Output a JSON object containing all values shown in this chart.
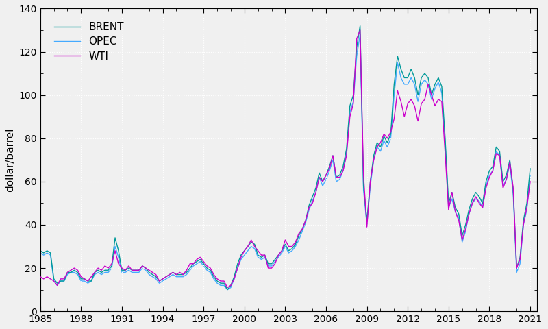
{
  "title": "",
  "ylabel": "dollar/barrel",
  "xlabel": "",
  "xlim": [
    1985.0,
    2021.5
  ],
  "ylim": [
    0,
    140
  ],
  "yticks": [
    0,
    20,
    40,
    60,
    80,
    100,
    120,
    140
  ],
  "xticks": [
    1985,
    1988,
    1991,
    1994,
    1997,
    2000,
    2003,
    2006,
    2009,
    2012,
    2015,
    2018,
    2021
  ],
  "colors": {
    "WTI": "#cc00cc",
    "BRENT": "#009999",
    "OPEC": "#44aaff"
  },
  "background_color": "#f0f0f0",
  "grid_color": "#ffffff",
  "linewidth": 1.0,
  "wti_years": [
    1985,
    1985.25,
    1985.5,
    1985.75,
    1986,
    1986.25,
    1986.5,
    1986.75,
    1987,
    1987.25,
    1987.5,
    1987.75,
    1988,
    1988.25,
    1988.5,
    1988.75,
    1989,
    1989.25,
    1989.5,
    1989.75,
    1990,
    1990.25,
    1990.5,
    1990.75,
    1991,
    1991.25,
    1991.5,
    1991.75,
    1992,
    1992.25,
    1992.5,
    1992.75,
    1993,
    1993.25,
    1993.5,
    1993.75,
    1994,
    1994.25,
    1994.5,
    1994.75,
    1995,
    1995.25,
    1995.5,
    1995.75,
    1996,
    1996.25,
    1996.5,
    1996.75,
    1997,
    1997.25,
    1997.5,
    1997.75,
    1998,
    1998.25,
    1998.5,
    1998.75,
    1999,
    1999.25,
    1999.5,
    1999.75,
    2000,
    2000.25,
    2000.5,
    2000.75,
    2001,
    2001.25,
    2001.5,
    2001.75,
    2002,
    2002.25,
    2002.5,
    2002.75,
    2003,
    2003.25,
    2003.5,
    2003.75,
    2004,
    2004.25,
    2004.5,
    2004.75,
    2005,
    2005.25,
    2005.5,
    2005.75,
    2006,
    2006.25,
    2006.5,
    2006.75,
    2007,
    2007.25,
    2007.5,
    2007.75,
    2008,
    2008.25,
    2008.5,
    2008.75,
    2009,
    2009.25,
    2009.5,
    2009.75,
    2010,
    2010.25,
    2010.5,
    2010.75,
    2011,
    2011.25,
    2011.5,
    2011.75,
    2012,
    2012.25,
    2012.5,
    2012.75,
    2013,
    2013.25,
    2013.5,
    2013.75,
    2014,
    2014.25,
    2014.5,
    2014.75,
    2015,
    2015.25,
    2015.5,
    2015.75,
    2016,
    2016.25,
    2016.5,
    2016.75,
    2017,
    2017.25,
    2017.5,
    2017.75,
    2018,
    2018.25,
    2018.5,
    2018.75,
    2019,
    2019.25,
    2019.5,
    2019.75,
    2020,
    2020.25,
    2020.5,
    2020.75,
    2021
  ],
  "wti": [
    16,
    15,
    16,
    15,
    14,
    12,
    15,
    15,
    18,
    19,
    20,
    19,
    16,
    15,
    14,
    16,
    18,
    20,
    19,
    21,
    20,
    22,
    28,
    22,
    20,
    19,
    21,
    19,
    19,
    19,
    21,
    20,
    19,
    18,
    17,
    14,
    15,
    16,
    17,
    18,
    17,
    18,
    17,
    19,
    22,
    22,
    24,
    25,
    23,
    21,
    20,
    17,
    15,
    14,
    14,
    11,
    12,
    15,
    20,
    25,
    28,
    30,
    33,
    30,
    28,
    26,
    26,
    20,
    20,
    22,
    26,
    28,
    33,
    30,
    30,
    32,
    36,
    38,
    42,
    48,
    50,
    55,
    62,
    60,
    63,
    66,
    72,
    62,
    62,
    65,
    72,
    90,
    96,
    126,
    130,
    63,
    39,
    60,
    70,
    76,
    78,
    82,
    80,
    83,
    89,
    102,
    97,
    90,
    96,
    98,
    95,
    88,
    96,
    98,
    105,
    100,
    95,
    98,
    97,
    73,
    47,
    55,
    46,
    42,
    33,
    38,
    45,
    50,
    53,
    50,
    48,
    57,
    62,
    65,
    73,
    72,
    57,
    61,
    69,
    57,
    20,
    24,
    40,
    48,
    60
  ],
  "brent": [
    28,
    27,
    28,
    27,
    15,
    13,
    14,
    14,
    18,
    18,
    19,
    18,
    15,
    15,
    14,
    14,
    18,
    19,
    18,
    19,
    19,
    21,
    34,
    28,
    19,
    19,
    20,
    19,
    19,
    19,
    21,
    20,
    18,
    17,
    16,
    14,
    15,
    16,
    17,
    18,
    17,
    17,
    17,
    18,
    20,
    22,
    23,
    24,
    22,
    20,
    19,
    16,
    14,
    13,
    13,
    10,
    12,
    16,
    22,
    26,
    28,
    30,
    32,
    31,
    26,
    25,
    26,
    22,
    22,
    24,
    26,
    28,
    31,
    28,
    29,
    31,
    35,
    38,
    42,
    49,
    53,
    57,
    64,
    60,
    63,
    67,
    72,
    62,
    63,
    67,
    75,
    95,
    100,
    122,
    132,
    58,
    42,
    60,
    72,
    78,
    76,
    81,
    78,
    82,
    105,
    118,
    112,
    108,
    108,
    112,
    108,
    100,
    108,
    110,
    108,
    100,
    105,
    108,
    104,
    80,
    50,
    55,
    48,
    45,
    35,
    40,
    47,
    52,
    55,
    53,
    50,
    60,
    65,
    67,
    76,
    74,
    60,
    63,
    70,
    56,
    20,
    25,
    42,
    50,
    66
  ],
  "opec": [
    27,
    26,
    27,
    26,
    14,
    12,
    14,
    14,
    17,
    18,
    18,
    17,
    14,
    14,
    13,
    14,
    17,
    18,
    17,
    18,
    18,
    20,
    30,
    25,
    18,
    18,
    19,
    18,
    18,
    18,
    20,
    19,
    17,
    16,
    15,
    13,
    14,
    15,
    16,
    17,
    16,
    16,
    16,
    17,
    19,
    21,
    22,
    23,
    21,
    19,
    18,
    15,
    13,
    12,
    12,
    10,
    11,
    15,
    20,
    24,
    26,
    28,
    30,
    29,
    25,
    24,
    25,
    21,
    21,
    23,
    25,
    27,
    30,
    27,
    28,
    30,
    33,
    37,
    41,
    47,
    51,
    55,
    62,
    58,
    61,
    65,
    70,
    60,
    61,
    65,
    73,
    92,
    97,
    118,
    128,
    56,
    40,
    58,
    70,
    76,
    74,
    79,
    76,
    80,
    100,
    115,
    108,
    105,
    105,
    108,
    105,
    97,
    105,
    107,
    105,
    98,
    103,
    106,
    101,
    78,
    48,
    52,
    46,
    43,
    32,
    37,
    45,
    50,
    52,
    51,
    48,
    58,
    63,
    65,
    74,
    72,
    58,
    61,
    68,
    54,
    18,
    22,
    40,
    47,
    63
  ]
}
